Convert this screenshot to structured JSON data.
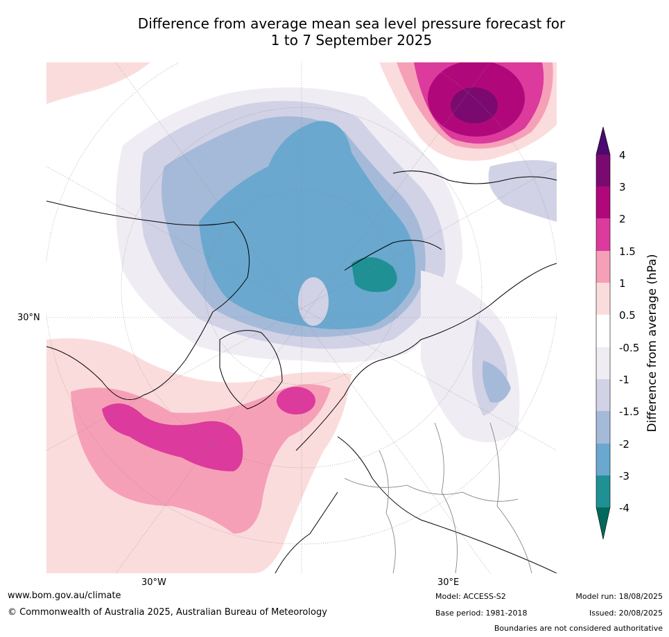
{
  "title": {
    "line1": "Difference from average mean sea level pressure forecast for",
    "line2": "1 to 7 September 2025"
  },
  "graticule": {
    "lat_label": "30°N",
    "lon_west": "30°W",
    "lon_east": "30°E"
  },
  "colorbar": {
    "label": "Difference from average (hPa)",
    "ticks": [
      "4",
      "3",
      "2",
      "1.5",
      "1",
      "0.5",
      "-0.5",
      "-1",
      "-1.5",
      "-2",
      "-3",
      "-4"
    ],
    "colors": {
      "gt4": "#4b0a6e",
      "3to4": "#7a0a70",
      "2to3": "#b0087a",
      "1.5to2": "#dc3a9c",
      "1to1.5": "#f6a0b8",
      "0.5to1": "#fbdcdc",
      "neutral": "#ffffff",
      "-1to-0.5": "#efecf3",
      "-1.5to-1": "#d1d2e6",
      "-2to-1.5": "#a5bad8",
      "-3to-2": "#6aa8cf",
      "-4to-3": "#1f9094",
      "lt-4": "#00695c"
    }
  },
  "footer": {
    "website": "www.bom.gov.au/climate",
    "copyright": "© Commonwealth of Australia 2025, Australian Bureau of Meteorology",
    "model": "Model: ACCESS-S2",
    "base_period": "Base period: 1981-2018",
    "model_run": "Model run: 18/08/2025",
    "issued": "Issued: 20/08/2025",
    "boundaries": "Boundaries are not considered authoritative"
  }
}
